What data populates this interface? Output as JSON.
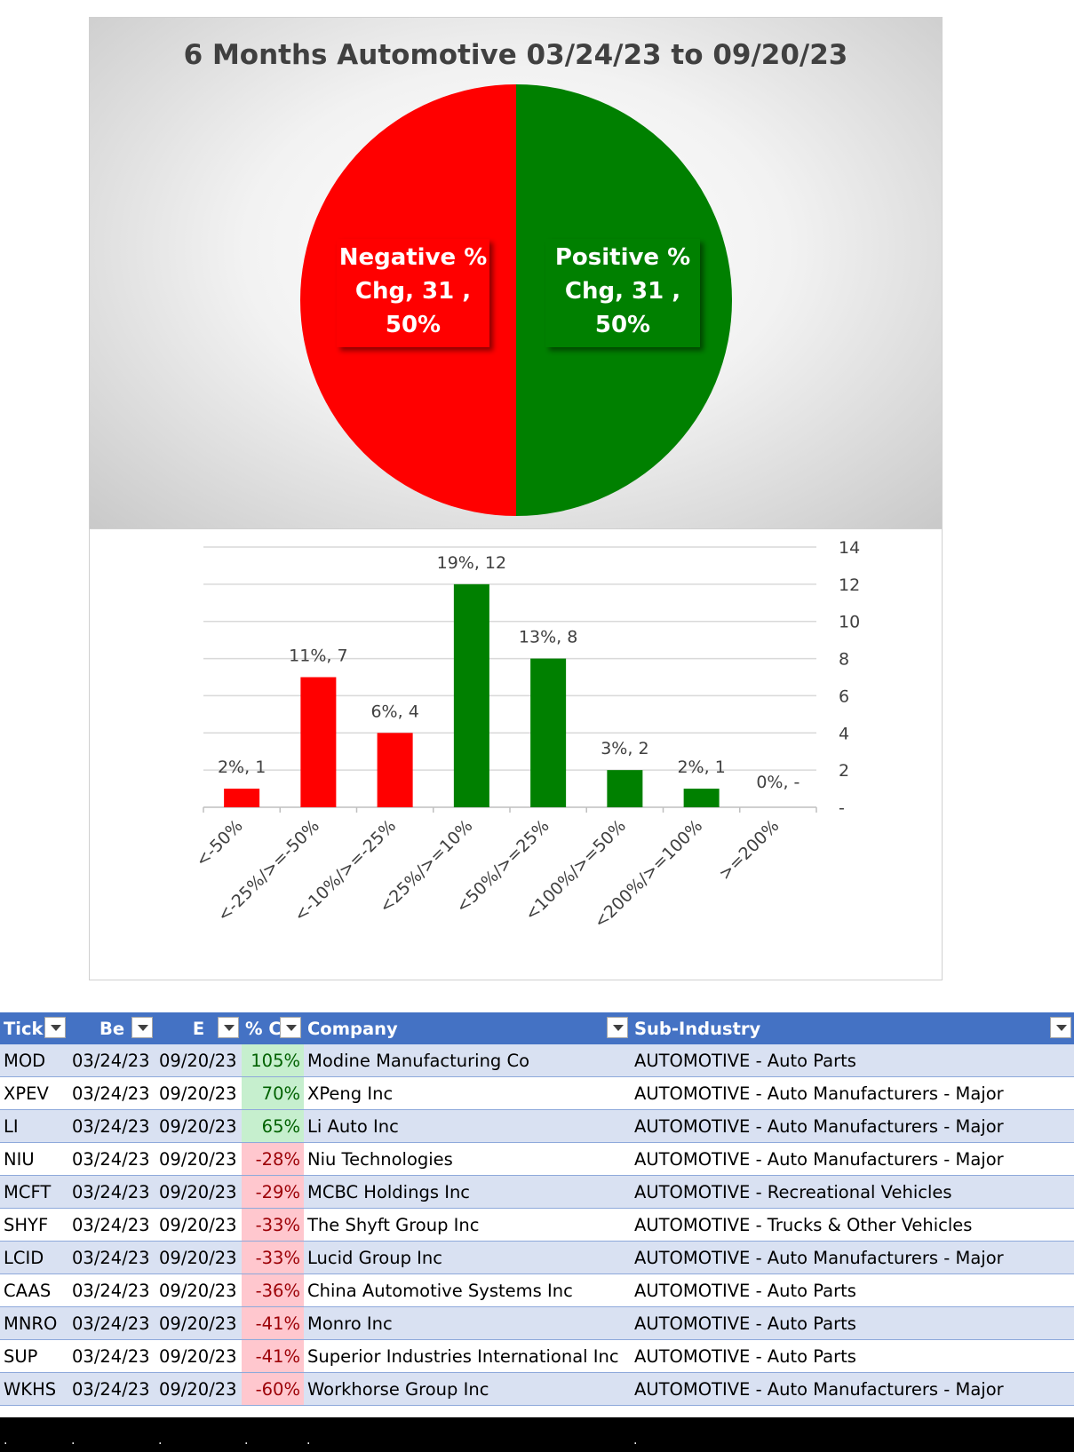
{
  "chart_data": [
    {
      "type": "pie",
      "title": "6 Months Automotive 03/24/23 to 09/20/23",
      "slices": [
        {
          "name": "Positive % Chg",
          "value": 31,
          "percent": "50%",
          "color": "#008000",
          "label_lines": [
            "Positive %",
            "Chg,  31 ,",
            "50%"
          ]
        },
        {
          "name": "Negative % Chg",
          "value": 31,
          "percent": "50%",
          "color": "#ff0000",
          "label_lines": [
            "Negative %",
            "Chg,  31 ,",
            "50%"
          ]
        }
      ]
    },
    {
      "type": "bar",
      "categories": [
        "<-50%",
        "<-25%/>=-50%",
        "<-10%/>=-25%",
        "<25%/>=10%",
        "<50%/>=25%",
        "<100%/>=50%",
        "<200%/>=100%",
        ">=200%"
      ],
      "values": [
        1,
        7,
        4,
        12,
        8,
        2,
        1,
        0
      ],
      "data_labels": [
        "2%,  1",
        "11%,  7",
        "6%,  4",
        "19%,  12",
        "13%,  8",
        "3%,  2",
        "2%,  1",
        "0%,  -"
      ],
      "colors": [
        "#ff0000",
        "#ff0000",
        "#ff0000",
        "#008000",
        "#008000",
        "#008000",
        "#008000",
        "#008000"
      ],
      "ylim": [
        0,
        14
      ],
      "yticks": [
        "-",
        "2",
        "4",
        "6",
        "8",
        "10",
        "12",
        "14"
      ],
      "yaxis_position": "right",
      "grid": true
    }
  ],
  "table": {
    "headers": [
      "Tick",
      "Be",
      "E",
      "% C",
      "Company",
      "Sub-Industry"
    ],
    "rows": [
      {
        "ticker": "MOD",
        "begin": "03/24/23",
        "end": "09/20/23",
        "pct": "105%",
        "sign": "pos",
        "company": "Modine Manufacturing Co",
        "sub": "AUTOMOTIVE - Auto Parts"
      },
      {
        "ticker": "XPEV",
        "begin": "03/24/23",
        "end": "09/20/23",
        "pct": "70%",
        "sign": "pos",
        "company": "XPeng Inc",
        "sub": "AUTOMOTIVE - Auto Manufacturers - Major"
      },
      {
        "ticker": "LI",
        "begin": "03/24/23",
        "end": "09/20/23",
        "pct": "65%",
        "sign": "pos",
        "company": "Li Auto Inc",
        "sub": "AUTOMOTIVE - Auto Manufacturers - Major"
      },
      {
        "ticker": "NIU",
        "begin": "03/24/23",
        "end": "09/20/23",
        "pct": "-28%",
        "sign": "neg",
        "company": "Niu Technologies",
        "sub": "AUTOMOTIVE - Auto Manufacturers - Major"
      },
      {
        "ticker": "MCFT",
        "begin": "03/24/23",
        "end": "09/20/23",
        "pct": "-29%",
        "sign": "neg",
        "company": "MCBC Holdings Inc",
        "sub": "AUTOMOTIVE - Recreational Vehicles"
      },
      {
        "ticker": "SHYF",
        "begin": "03/24/23",
        "end": "09/20/23",
        "pct": "-33%",
        "sign": "neg",
        "company": "The Shyft Group Inc",
        "sub": "AUTOMOTIVE - Trucks & Other Vehicles"
      },
      {
        "ticker": "LCID",
        "begin": "03/24/23",
        "end": "09/20/23",
        "pct": "-33%",
        "sign": "neg",
        "company": "Lucid Group Inc",
        "sub": "AUTOMOTIVE - Auto Manufacturers - Major"
      },
      {
        "ticker": "CAAS",
        "begin": "03/24/23",
        "end": "09/20/23",
        "pct": "-36%",
        "sign": "neg",
        "company": "China Automotive Systems Inc",
        "sub": "AUTOMOTIVE - Auto Parts"
      },
      {
        "ticker": "MNRO",
        "begin": "03/24/23",
        "end": "09/20/23",
        "pct": "-41%",
        "sign": "neg",
        "company": "Monro Inc",
        "sub": "AUTOMOTIVE - Auto Parts"
      },
      {
        "ticker": "SUP",
        "begin": "03/24/23",
        "end": "09/20/23",
        "pct": "-41%",
        "sign": "neg",
        "company": "Superior Industries International Inc",
        "sub": "AUTOMOTIVE - Auto Parts"
      },
      {
        "ticker": "WKHS",
        "begin": "03/24/23",
        "end": "09/20/23",
        "pct": "-60%",
        "sign": "neg",
        "company": "Workhorse Group Inc",
        "sub": "AUTOMOTIVE - Auto Manufacturers - Major"
      }
    ]
  }
}
